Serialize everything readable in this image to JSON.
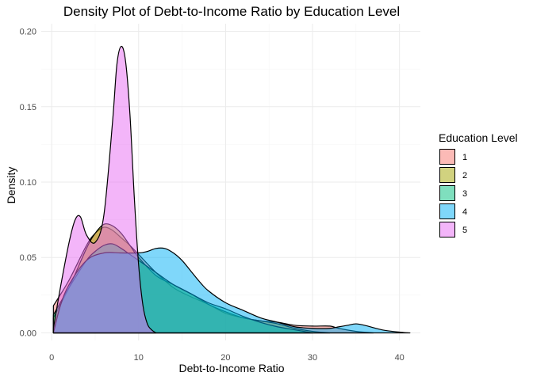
{
  "chart_data": {
    "type": "area",
    "subtype": "density",
    "title": "Density Plot of Debt-to-Income Ratio by Education Level",
    "xlabel": "Debt-to-Income Ratio",
    "ylabel": "Density",
    "xlim": [
      -1.2,
      42.4
    ],
    "ylim": [
      -0.005,
      0.205
    ],
    "x_ticks": [
      0,
      10,
      20,
      30,
      40
    ],
    "x_tick_labels": [
      "0",
      "10",
      "20",
      "30",
      "40"
    ],
    "y_ticks": [
      0.0,
      0.05,
      0.1,
      0.15,
      0.2
    ],
    "y_tick_labels": [
      "0.00",
      "0.05",
      "0.10",
      "0.15",
      "0.20"
    ],
    "grid": true,
    "legend": {
      "title": "Education Level",
      "position": "right"
    },
    "fill_opacity": 0.5,
    "series": [
      {
        "name": "1",
        "color": "#F8766D",
        "x": [
          0.2,
          2,
          4,
          5,
          6,
          7,
          8,
          9,
          10,
          12,
          14,
          16,
          18,
          20,
          22,
          24,
          26,
          28,
          30,
          32,
          33,
          35,
          37
        ],
        "y": [
          0.018,
          0.035,
          0.058,
          0.066,
          0.07,
          0.068,
          0.063,
          0.058,
          0.052,
          0.04,
          0.03,
          0.024,
          0.019,
          0.013,
          0.01,
          0.008,
          0.007,
          0.005,
          0.0045,
          0.0045,
          0.003,
          0.001,
          0.0
        ]
      },
      {
        "name": "2",
        "color": "#A3A500",
        "x": [
          0.2,
          2,
          4,
          5,
          6,
          7,
          8,
          9,
          10,
          12,
          14,
          16,
          18,
          20,
          22,
          24,
          26,
          28,
          30,
          32
        ],
        "y": [
          0.01,
          0.03,
          0.056,
          0.066,
          0.072,
          0.071,
          0.066,
          0.058,
          0.05,
          0.038,
          0.032,
          0.026,
          0.019,
          0.014,
          0.01,
          0.008,
          0.006,
          0.003,
          0.001,
          0.0
        ]
      },
      {
        "name": "3",
        "color": "#00BF7D",
        "x": [
          0.2,
          2,
          4,
          5,
          6,
          7,
          8,
          9,
          10,
          12,
          14,
          16,
          18,
          20,
          22,
          24,
          26,
          28,
          30
        ],
        "y": [
          0.012,
          0.03,
          0.048,
          0.054,
          0.058,
          0.059,
          0.056,
          0.052,
          0.048,
          0.04,
          0.032,
          0.026,
          0.02,
          0.016,
          0.011,
          0.007,
          0.004,
          0.002,
          0.0
        ]
      },
      {
        "name": "4",
        "color": "#00B0F6",
        "x": [
          0.2,
          1,
          2,
          4,
          6,
          8,
          10,
          11,
          12,
          13,
          14,
          15,
          16,
          17,
          18,
          20,
          22,
          24,
          26,
          28,
          30,
          32,
          33,
          34,
          35,
          36,
          38,
          40,
          41.2
        ],
        "y": [
          0.0,
          0.018,
          0.032,
          0.048,
          0.053,
          0.053,
          0.053,
          0.054,
          0.056,
          0.056,
          0.053,
          0.048,
          0.041,
          0.034,
          0.028,
          0.02,
          0.015,
          0.01,
          0.007,
          0.004,
          0.003,
          0.003,
          0.004,
          0.005,
          0.006,
          0.005,
          0.002,
          0.0005,
          0.0
        ]
      },
      {
        "name": "5",
        "color": "#E76BF3",
        "x": [
          0.2,
          1,
          2,
          2.7,
          3.3,
          4,
          5,
          6,
          7,
          7.5,
          8,
          8.5,
          9,
          9.5,
          10,
          10.5,
          11,
          11.5,
          12
        ],
        "y": [
          0.003,
          0.03,
          0.06,
          0.075,
          0.077,
          0.065,
          0.06,
          0.078,
          0.14,
          0.178,
          0.19,
          0.18,
          0.145,
          0.09,
          0.045,
          0.018,
          0.006,
          0.002,
          0.0
        ]
      }
    ]
  }
}
